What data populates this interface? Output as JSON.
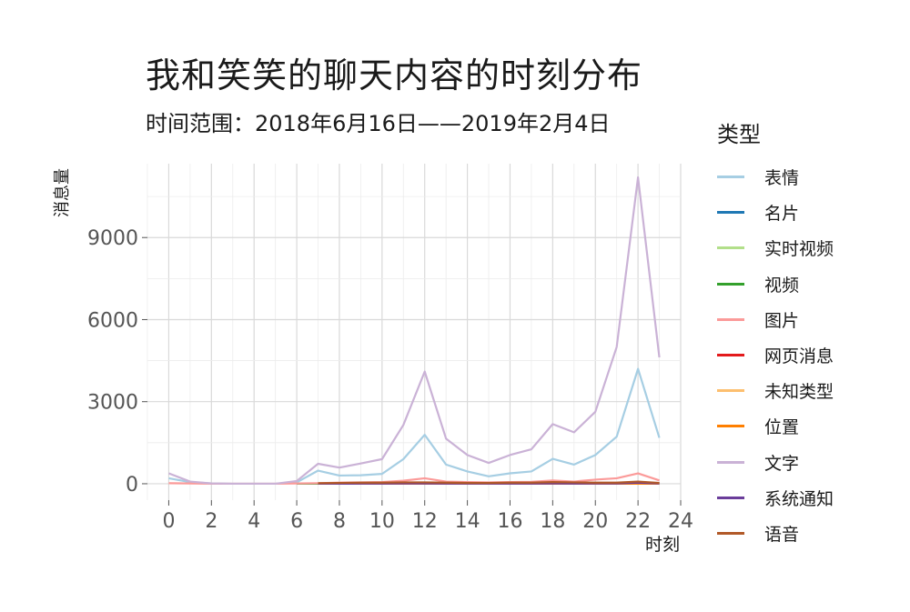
{
  "chart_data": {
    "type": "line",
    "title": "我和笑笑的聊天内容的时刻分布",
    "subtitle": "时间范围：2018年6月16日——2019年2月4日",
    "xlabel": "时刻",
    "ylabel": "消息量",
    "xlim": [
      -1,
      24
    ],
    "ylim": [
      -600,
      11700
    ],
    "x_ticks": [
      0,
      2,
      4,
      6,
      8,
      10,
      12,
      14,
      16,
      18,
      20,
      22,
      24
    ],
    "y_ticks": [
      0,
      3000,
      6000,
      9000
    ],
    "grid": true,
    "legend_title": "类型",
    "legend_position": "right",
    "x": [
      0,
      1,
      2,
      3,
      4,
      5,
      6,
      7,
      8,
      9,
      10,
      11,
      12,
      13,
      14,
      15,
      16,
      17,
      18,
      19,
      20,
      21,
      22,
      23
    ],
    "series": [
      {
        "name": "表情",
        "color": "#a6cee3",
        "values": [
          200,
          60,
          10,
          0,
          0,
          0,
          50,
          480,
          300,
          310,
          360,
          900,
          1790,
          700,
          450,
          270,
          380,
          450,
          910,
          700,
          1050,
          1720,
          4200,
          1680
        ]
      },
      {
        "name": "名片",
        "color": "#1f78b4",
        "values": [
          null,
          null,
          null,
          null,
          null,
          null,
          null,
          0,
          0,
          0,
          0,
          0,
          0,
          0,
          0,
          0,
          0,
          0,
          0,
          0,
          0,
          0,
          0,
          0
        ]
      },
      {
        "name": "实时视频",
        "color": "#b2df8a",
        "values": [
          null,
          null,
          null,
          null,
          null,
          null,
          null,
          0,
          0,
          0,
          0,
          0,
          0,
          0,
          0,
          0,
          0,
          0,
          0,
          0,
          0,
          0,
          0,
          0
        ]
      },
      {
        "name": "视频",
        "color": "#33a02c",
        "values": [
          null,
          null,
          null,
          null,
          null,
          null,
          0,
          0,
          5,
          5,
          5,
          5,
          5,
          5,
          5,
          5,
          5,
          5,
          5,
          5,
          5,
          5,
          5,
          5
        ]
      },
      {
        "name": "图片",
        "color": "#fb9a99",
        "values": [
          20,
          10,
          0,
          0,
          0,
          0,
          10,
          20,
          40,
          50,
          60,
          110,
          200,
          80,
          60,
          50,
          60,
          70,
          120,
          80,
          150,
          200,
          380,
          120
        ]
      },
      {
        "name": "网页消息",
        "color": "#e31a1c",
        "values": [
          null,
          null,
          null,
          null,
          null,
          null,
          null,
          5,
          10,
          10,
          10,
          15,
          20,
          10,
          10,
          10,
          10,
          10,
          15,
          10,
          15,
          20,
          30,
          10
        ]
      },
      {
        "name": "未知类型",
        "color": "#fdbf6f",
        "values": [
          null,
          null,
          null,
          null,
          null,
          null,
          null,
          10,
          15,
          15,
          15,
          20,
          25,
          15,
          15,
          15,
          15,
          15,
          20,
          15,
          20,
          25,
          30,
          15
        ]
      },
      {
        "name": "位置",
        "color": "#ff7f00",
        "values": [
          null,
          null,
          null,
          null,
          null,
          null,
          null,
          0,
          0,
          0,
          0,
          0,
          0,
          0,
          0,
          0,
          0,
          0,
          0,
          0,
          0,
          0,
          0,
          0
        ]
      },
      {
        "name": "文字",
        "color": "#cab2d6",
        "values": [
          380,
          80,
          10,
          0,
          0,
          0,
          100,
          730,
          590,
          740,
          900,
          2150,
          4100,
          1650,
          1050,
          760,
          1050,
          1260,
          2180,
          1880,
          2630,
          5000,
          11200,
          4620
        ]
      },
      {
        "name": "系统通知",
        "color": "#6a3d9a",
        "values": [
          null,
          null,
          null,
          null,
          null,
          null,
          null,
          0,
          0,
          5,
          5,
          10,
          10,
          5,
          5,
          5,
          5,
          5,
          10,
          5,
          10,
          10,
          40,
          10
        ]
      },
      {
        "name": "语音",
        "color": "#b15928",
        "values": [
          null,
          null,
          null,
          null,
          null,
          null,
          null,
          20,
          30,
          40,
          40,
          50,
          50,
          40,
          30,
          30,
          40,
          40,
          60,
          50,
          40,
          40,
          80,
          30
        ]
      }
    ]
  }
}
